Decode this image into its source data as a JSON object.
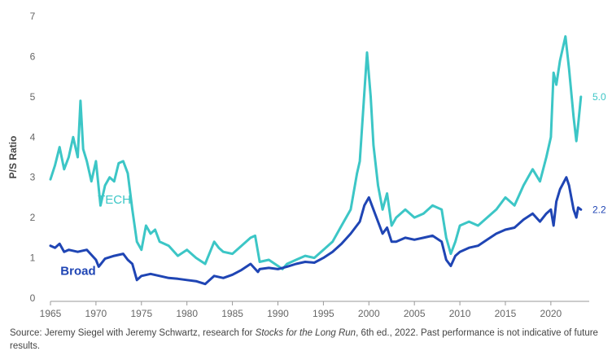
{
  "chart_data": {
    "type": "line",
    "ylabel": "P/S Ratio",
    "xlabel": "",
    "xlim": [
      1965,
      2023.5
    ],
    "ylim": [
      0,
      7
    ],
    "x_ticks": [
      "1965",
      "1970",
      "1975",
      "1980",
      "1985",
      "1990",
      "1995",
      "2000",
      "2005",
      "2010",
      "2015",
      "2020"
    ],
    "y_ticks": [
      "0",
      "1",
      "2",
      "3",
      "4",
      "5",
      "6",
      "7"
    ],
    "grid": false,
    "series": [
      {
        "name": "TECH",
        "color": "#3cc6c6",
        "end_label": "5.0",
        "points": [
          [
            1965.0,
            2.95
          ],
          [
            1965.5,
            3.3
          ],
          [
            1966.0,
            3.75
          ],
          [
            1966.5,
            3.2
          ],
          [
            1967.0,
            3.5
          ],
          [
            1967.5,
            4.0
          ],
          [
            1968.0,
            3.5
          ],
          [
            1968.3,
            4.9
          ],
          [
            1968.6,
            3.7
          ],
          [
            1969.0,
            3.4
          ],
          [
            1969.5,
            2.9
          ],
          [
            1970.0,
            3.4
          ],
          [
            1970.5,
            2.3
          ],
          [
            1971.0,
            2.8
          ],
          [
            1971.5,
            3.0
          ],
          [
            1972.0,
            2.9
          ],
          [
            1972.5,
            3.35
          ],
          [
            1973.0,
            3.4
          ],
          [
            1973.5,
            3.1
          ],
          [
            1974.0,
            2.2
          ],
          [
            1974.5,
            1.4
          ],
          [
            1975.0,
            1.2
          ],
          [
            1975.5,
            1.8
          ],
          [
            1976.0,
            1.6
          ],
          [
            1976.5,
            1.7
          ],
          [
            1977.0,
            1.4
          ],
          [
            1978.0,
            1.3
          ],
          [
            1979.0,
            1.05
          ],
          [
            1980.0,
            1.2
          ],
          [
            1981.0,
            1.0
          ],
          [
            1982.0,
            0.85
          ],
          [
            1983.0,
            1.4
          ],
          [
            1983.5,
            1.25
          ],
          [
            1984.0,
            1.15
          ],
          [
            1985.0,
            1.1
          ],
          [
            1986.0,
            1.3
          ],
          [
            1987.0,
            1.5
          ],
          [
            1987.5,
            1.55
          ],
          [
            1988.0,
            0.9
          ],
          [
            1989.0,
            0.95
          ],
          [
            1990.0,
            0.8
          ],
          [
            1990.5,
            0.72
          ],
          [
            1991.0,
            0.85
          ],
          [
            1992.0,
            0.95
          ],
          [
            1993.0,
            1.05
          ],
          [
            1994.0,
            1.0
          ],
          [
            1995.0,
            1.2
          ],
          [
            1996.0,
            1.4
          ],
          [
            1997.0,
            1.8
          ],
          [
            1998.0,
            2.2
          ],
          [
            1998.7,
            3.1
          ],
          [
            1999.0,
            3.4
          ],
          [
            1999.5,
            5.1
          ],
          [
            1999.8,
            6.1
          ],
          [
            2000.2,
            5.0
          ],
          [
            2000.5,
            3.8
          ],
          [
            2001.0,
            2.8
          ],
          [
            2001.5,
            2.2
          ],
          [
            2002.0,
            2.6
          ],
          [
            2002.5,
            1.8
          ],
          [
            2003.0,
            2.0
          ],
          [
            2004.0,
            2.2
          ],
          [
            2005.0,
            2.0
          ],
          [
            2006.0,
            2.1
          ],
          [
            2007.0,
            2.3
          ],
          [
            2008.0,
            2.2
          ],
          [
            2008.5,
            1.5
          ],
          [
            2009.0,
            1.1
          ],
          [
            2009.5,
            1.4
          ],
          [
            2010.0,
            1.8
          ],
          [
            2011.0,
            1.9
          ],
          [
            2012.0,
            1.8
          ],
          [
            2013.0,
            2.0
          ],
          [
            2014.0,
            2.2
          ],
          [
            2015.0,
            2.5
          ],
          [
            2016.0,
            2.3
          ],
          [
            2017.0,
            2.8
          ],
          [
            2018.0,
            3.2
          ],
          [
            2018.8,
            2.9
          ],
          [
            2019.5,
            3.5
          ],
          [
            2020.0,
            4.0
          ],
          [
            2020.3,
            5.6
          ],
          [
            2020.6,
            5.3
          ],
          [
            2021.0,
            5.9
          ],
          [
            2021.6,
            6.5
          ],
          [
            2022.0,
            5.7
          ],
          [
            2022.5,
            4.5
          ],
          [
            2022.8,
            3.9
          ],
          [
            2023.0,
            4.3
          ],
          [
            2023.3,
            5.0
          ]
        ]
      },
      {
        "name": "Broad",
        "color": "#1f45b4",
        "end_label": "2.2",
        "points": [
          [
            1965.0,
            1.3
          ],
          [
            1965.5,
            1.25
          ],
          [
            1966.0,
            1.35
          ],
          [
            1966.5,
            1.15
          ],
          [
            1967.0,
            1.2
          ],
          [
            1968.0,
            1.15
          ],
          [
            1969.0,
            1.2
          ],
          [
            1970.0,
            0.95
          ],
          [
            1970.3,
            0.78
          ],
          [
            1971.0,
            0.98
          ],
          [
            1972.0,
            1.05
          ],
          [
            1973.0,
            1.1
          ],
          [
            1973.5,
            0.95
          ],
          [
            1974.0,
            0.85
          ],
          [
            1974.5,
            0.45
          ],
          [
            1975.0,
            0.55
          ],
          [
            1976.0,
            0.6
          ],
          [
            1977.0,
            0.55
          ],
          [
            1978.0,
            0.5
          ],
          [
            1979.0,
            0.48
          ],
          [
            1980.0,
            0.45
          ],
          [
            1981.0,
            0.42
          ],
          [
            1982.0,
            0.35
          ],
          [
            1983.0,
            0.55
          ],
          [
            1984.0,
            0.5
          ],
          [
            1985.0,
            0.58
          ],
          [
            1986.0,
            0.7
          ],
          [
            1987.0,
            0.85
          ],
          [
            1987.8,
            0.65
          ],
          [
            1988.0,
            0.72
          ],
          [
            1989.0,
            0.75
          ],
          [
            1990.0,
            0.72
          ],
          [
            1991.0,
            0.78
          ],
          [
            1992.0,
            0.85
          ],
          [
            1993.0,
            0.9
          ],
          [
            1994.0,
            0.88
          ],
          [
            1995.0,
            1.0
          ],
          [
            1996.0,
            1.15
          ],
          [
            1997.0,
            1.35
          ],
          [
            1998.0,
            1.6
          ],
          [
            1999.0,
            1.9
          ],
          [
            1999.5,
            2.3
          ],
          [
            2000.0,
            2.5
          ],
          [
            2000.5,
            2.2
          ],
          [
            2001.0,
            1.9
          ],
          [
            2001.5,
            1.6
          ],
          [
            2002.0,
            1.75
          ],
          [
            2002.5,
            1.4
          ],
          [
            2003.0,
            1.4
          ],
          [
            2004.0,
            1.5
          ],
          [
            2005.0,
            1.45
          ],
          [
            2006.0,
            1.5
          ],
          [
            2007.0,
            1.55
          ],
          [
            2008.0,
            1.4
          ],
          [
            2008.5,
            0.95
          ],
          [
            2009.0,
            0.8
          ],
          [
            2009.5,
            1.05
          ],
          [
            2010.0,
            1.15
          ],
          [
            2011.0,
            1.25
          ],
          [
            2012.0,
            1.3
          ],
          [
            2013.0,
            1.45
          ],
          [
            2014.0,
            1.6
          ],
          [
            2015.0,
            1.7
          ],
          [
            2016.0,
            1.75
          ],
          [
            2017.0,
            1.95
          ],
          [
            2018.0,
            2.1
          ],
          [
            2018.8,
            1.9
          ],
          [
            2019.5,
            2.1
          ],
          [
            2020.0,
            2.2
          ],
          [
            2020.3,
            1.8
          ],
          [
            2020.6,
            2.4
          ],
          [
            2021.0,
            2.7
          ],
          [
            2021.7,
            3.0
          ],
          [
            2022.0,
            2.8
          ],
          [
            2022.5,
            2.2
          ],
          [
            2022.8,
            2.0
          ],
          [
            2023.0,
            2.25
          ],
          [
            2023.3,
            2.2
          ]
        ]
      }
    ],
    "annotations": [
      {
        "text": "TECH",
        "x": 1970.2,
        "y": 2.35
      },
      {
        "text": "Broad",
        "x": 1966.1,
        "y": 0.58
      }
    ]
  },
  "footer": {
    "source_prefix": "Source: Jeremy Siegel with Jeremy Schwartz, research for ",
    "book_title": "Stocks for the Long Run",
    "source_suffix": ", 6th ed., 2022. Past performance is not indicative of future results."
  }
}
